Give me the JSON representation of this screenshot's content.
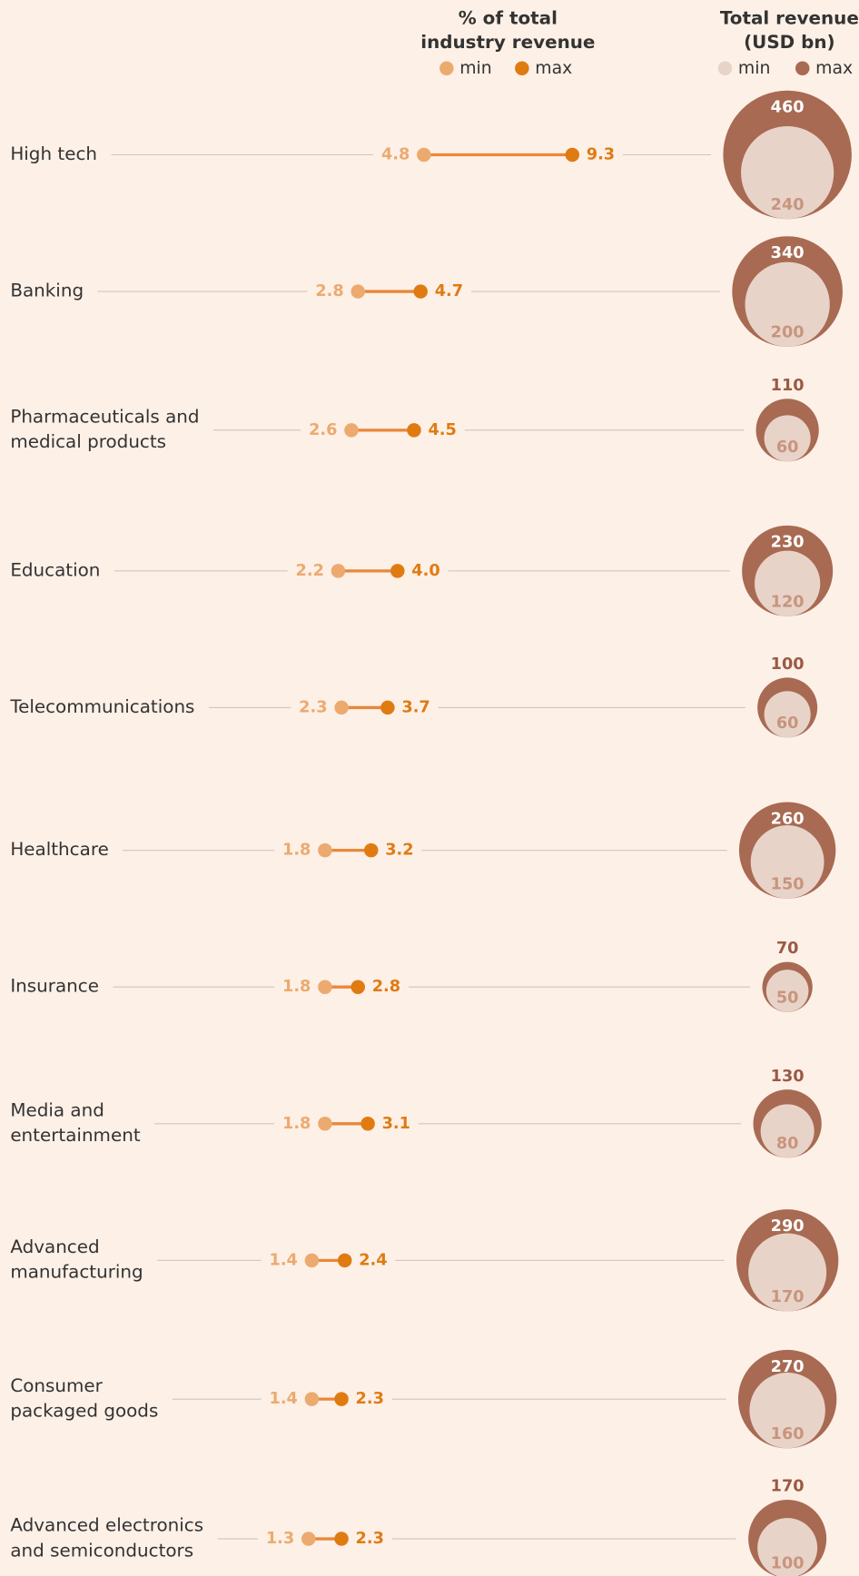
{
  "chart_data": {
    "type": "dumbbell",
    "pct_title": [
      "% of total",
      "industry revenue"
    ],
    "revenue_title": [
      "Total revenue",
      "(USD bn)"
    ],
    "categories": [
      [
        "High tech"
      ],
      [
        "Banking"
      ],
      [
        "Pharmaceuticals and",
        "medical products"
      ],
      [
        "Education"
      ],
      [
        "Telecommunications"
      ],
      [
        "Healthcare"
      ],
      [
        "Insurance"
      ],
      [
        "Media and",
        "entertainment"
      ],
      [
        "Advanced",
        "manufacturing"
      ],
      [
        "Consumer",
        "packaged goods"
      ],
      [
        "Advanced electronics",
        "and semiconductors"
      ]
    ],
    "series": [
      {
        "name": "min",
        "color": "#ecaa6f",
        "values": [
          4.8,
          2.8,
          2.6,
          2.2,
          2.3,
          1.8,
          1.8,
          1.8,
          1.4,
          1.4,
          1.3
        ],
        "value_labels": [
          "4.8",
          "2.8",
          "2.6",
          "2.2",
          "2.3",
          "1.8",
          "1.8",
          "1.8",
          "1.4",
          "1.4",
          "1.3"
        ]
      },
      {
        "name": "max",
        "color": "#e07b12",
        "values": [
          9.3,
          4.7,
          4.5,
          4.0,
          3.7,
          3.2,
          2.8,
          3.1,
          2.4,
          2.3,
          2.3
        ],
        "value_labels": [
          "9.3",
          "4.7",
          "4.5",
          "4.0",
          "3.7",
          "3.2",
          "2.8",
          "3.1",
          "2.4",
          "2.3",
          "2.3"
        ]
      }
    ],
    "revenue_series": [
      {
        "name": "min",
        "color": "#e8d3c9",
        "values": [
          240,
          200,
          60,
          120,
          60,
          150,
          50,
          80,
          170,
          160,
          100
        ]
      },
      {
        "name": "max",
        "color": "#a86a52",
        "values": [
          460,
          340,
          110,
          230,
          100,
          260,
          70,
          130,
          290,
          270,
          170
        ]
      }
    ]
  }
}
